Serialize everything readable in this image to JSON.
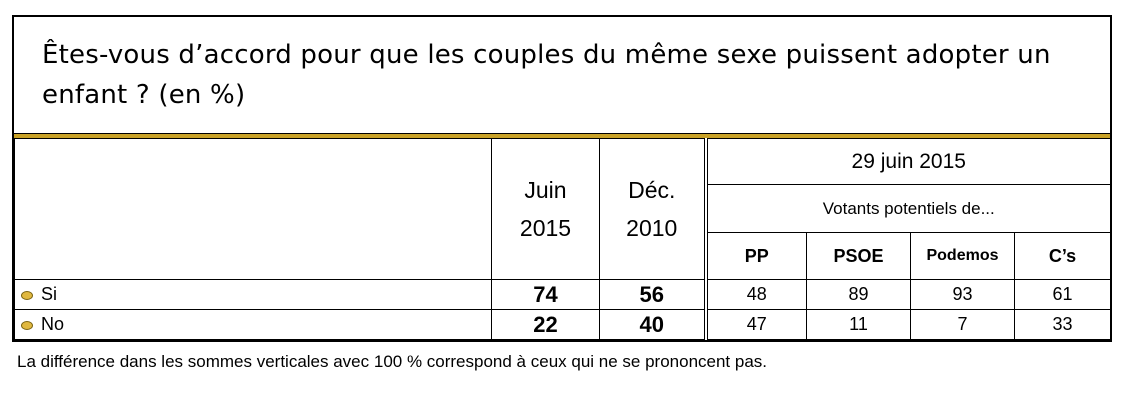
{
  "chart_data": {
    "type": "table",
    "title": "Êtes-vous d’accord pour que les couples du même sexe puissent adopter un enfant ? (en %)",
    "columns": {
      "juin_2015": "Juin 2015",
      "dec_2010": "Déc. 2010",
      "date_group": "29 juin 2015",
      "subgroup": "Votants potentiels de...",
      "parties": [
        "PP",
        "PSOE",
        "Podemos",
        "C’s"
      ]
    },
    "rows": [
      {
        "label": "Si",
        "juin_2015": "74",
        "dec_2010": "56",
        "parties": [
          "48",
          "89",
          "93",
          "61"
        ]
      },
      {
        "label": "No",
        "juin_2015": "22",
        "dec_2010": "40",
        "parties": [
          "47",
          "11",
          "7",
          "33"
        ]
      }
    ],
    "footnote": "La différence dans les sommes verticales avec 100 % correspond à ceux qui ne se prononcent pas.",
    "colors": {
      "accent_rule": "#c9a227",
      "bullet": "#e0b840"
    }
  }
}
